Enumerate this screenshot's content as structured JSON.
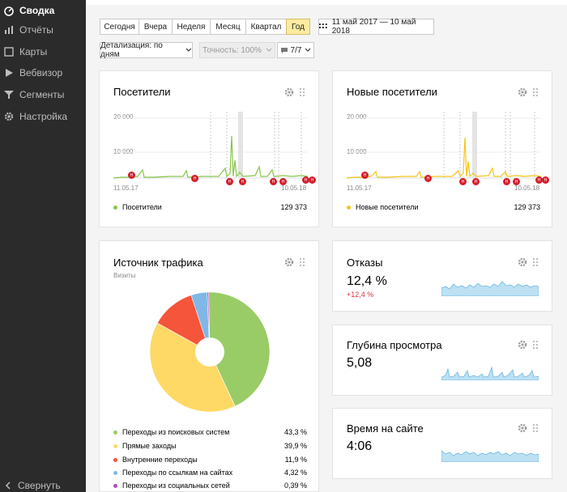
{
  "sidebar": {
    "items": [
      {
        "label": "Сводка",
        "icon": "dashboard-icon",
        "active": true
      },
      {
        "label": "Отчёты",
        "icon": "reports-icon",
        "active": false
      },
      {
        "label": "Карты",
        "icon": "maps-icon",
        "active": false
      },
      {
        "label": "Вебвизор",
        "icon": "webvisor-icon",
        "active": false
      },
      {
        "label": "Сегменты",
        "icon": "segments-icon",
        "active": false
      },
      {
        "label": "Настройка",
        "icon": "settings-icon",
        "active": false
      }
    ],
    "collapse_label": "Свернуть"
  },
  "toolbar": {
    "periods": [
      "Сегодня",
      "Вчера",
      "Неделя",
      "Месяц",
      "Квартал",
      "Год"
    ],
    "active_period": "Год",
    "date_range": "11 май 2017 — 10 май 2018",
    "detail": "Детализация: по дням",
    "accuracy": "Точность: 100%",
    "segments": "7/7"
  },
  "visitors": {
    "title": "Посетители",
    "y_ticks": [
      "20 000",
      "10 000"
    ],
    "x_start": "11.05.17",
    "x_end": "10.05.18",
    "legend": "Посетители",
    "total": "129 373",
    "color": "#88c54a"
  },
  "new_visitors": {
    "title": "Новые посетители",
    "y_ticks": [
      "20 000",
      "10 000"
    ],
    "x_start": "11.05.17",
    "x_end": "10.05.18",
    "legend": "Новые посетители",
    "total": "129 373",
    "color": "#f5c518"
  },
  "traffic": {
    "title": "Источник трафика",
    "subtitle": "Визиты",
    "rows": [
      {
        "label": "Переходы из поисковых систем",
        "value": "43,3 %",
        "color": "#99cc66"
      },
      {
        "label": "Прямые заходы",
        "value": "39,9 %",
        "color": "#ffd966"
      },
      {
        "label": "Внутренние переходы",
        "value": "11,9 %",
        "color": "#f5553a"
      },
      {
        "label": "Переходы по ссылкам на сайтах",
        "value": "4,32 %",
        "color": "#7fb8e6"
      },
      {
        "label": "Переходы из социальных сетей",
        "value": "0,39 %",
        "color": "#b04fc0"
      }
    ]
  },
  "bounce": {
    "title": "Отказы",
    "value": "12,4 %",
    "delta": "+12,4 %"
  },
  "depth": {
    "title": "Глубина просмотра",
    "value": "5,08"
  },
  "time": {
    "title": "Время на сайте",
    "value": "4:06"
  },
  "chart_data": [
    {
      "type": "pie",
      "title": "Источник трафика",
      "categories": [
        "Переходы из поисковых систем",
        "Прямые заходы",
        "Внутренние переходы",
        "Переходы по ссылкам на сайтах",
        "Переходы из социальных сетей"
      ],
      "values": [
        43.3,
        39.9,
        11.9,
        4.32,
        0.39
      ]
    }
  ]
}
